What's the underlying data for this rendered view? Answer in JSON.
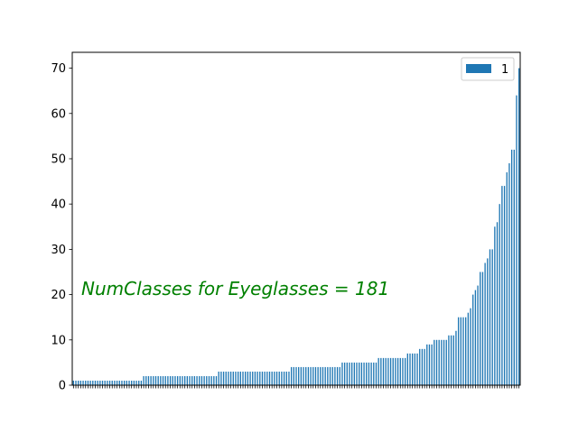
{
  "chart_data": {
    "type": "bar",
    "series": [
      {
        "name": "1",
        "values": [
          1,
          1,
          1,
          1,
          1,
          1,
          1,
          1,
          1,
          1,
          1,
          1,
          1,
          1,
          1,
          1,
          1,
          1,
          1,
          1,
          1,
          1,
          1,
          1,
          1,
          1,
          1,
          1,
          1,
          2,
          2,
          2,
          2,
          2,
          2,
          2,
          2,
          2,
          2,
          2,
          2,
          2,
          2,
          2,
          2,
          2,
          2,
          2,
          2,
          2,
          2,
          2,
          2,
          2,
          2,
          2,
          2,
          2,
          2,
          2,
          3,
          3,
          3,
          3,
          3,
          3,
          3,
          3,
          3,
          3,
          3,
          3,
          3,
          3,
          3,
          3,
          3,
          3,
          3,
          3,
          3,
          3,
          3,
          3,
          3,
          3,
          3,
          3,
          3,
          3,
          4,
          4,
          4,
          4,
          4,
          4,
          4,
          4,
          4,
          4,
          4,
          4,
          4,
          4,
          4,
          4,
          4,
          4,
          4,
          4,
          4,
          5,
          5,
          5,
          5,
          5,
          5,
          5,
          5,
          5,
          5,
          5,
          5,
          5,
          5,
          5,
          6,
          6,
          6,
          6,
          6,
          6,
          6,
          6,
          6,
          6,
          6,
          6,
          7,
          7,
          7,
          7,
          7,
          8,
          8,
          8,
          9,
          9,
          9,
          10,
          10,
          10,
          10,
          10,
          10,
          11,
          11,
          11,
          12,
          15,
          15,
          15,
          15,
          16,
          17,
          20,
          21,
          22,
          25,
          25,
          27,
          28,
          30,
          30,
          35,
          36,
          40,
          44,
          44,
          47,
          49,
          52,
          52,
          64,
          70
        ]
      }
    ],
    "ylim": [
      0,
      73.5
    ],
    "yticks": [
      "0",
      "10",
      "20",
      "30",
      "40",
      "50",
      "60",
      "70"
    ],
    "bar_color": "#1f77b4",
    "legend_position": "top-right",
    "annotation": {
      "text": "NumClasses for Eyeglasses = 181",
      "color": "#008000"
    }
  }
}
